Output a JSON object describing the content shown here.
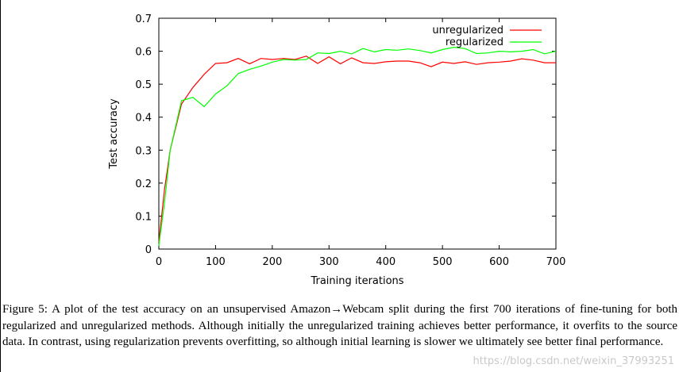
{
  "chart_data": {
    "type": "line",
    "title": "",
    "xlabel": "Training iterations",
    "ylabel": "Test accuracy",
    "xlim": [
      0,
      700
    ],
    "ylim": [
      0,
      0.7
    ],
    "xticks": [
      "0",
      "100",
      "200",
      "300",
      "400",
      "500",
      "600",
      "700"
    ],
    "yticks": [
      "0",
      "0.1",
      "0.2",
      "0.3",
      "0.4",
      "0.5",
      "0.6",
      "0.7"
    ],
    "grid": false,
    "legend_position": "top-right",
    "series": [
      {
        "name": "unregularized",
        "color": "#ff0000",
        "x": [
          0,
          10,
          20,
          40,
          60,
          80,
          100,
          120,
          140,
          160,
          180,
          200,
          220,
          240,
          260,
          280,
          300,
          320,
          340,
          360,
          380,
          400,
          420,
          440,
          460,
          480,
          500,
          520,
          540,
          560,
          580,
          600,
          620,
          640,
          660,
          680,
          700
        ],
        "y": [
          0.02,
          0.18,
          0.3,
          0.44,
          0.49,
          0.53,
          0.563,
          0.565,
          0.578,
          0.562,
          0.578,
          0.575,
          0.578,
          0.575,
          0.585,
          0.563,
          0.583,
          0.562,
          0.58,
          0.565,
          0.563,
          0.568,
          0.57,
          0.57,
          0.565,
          0.553,
          0.567,
          0.563,
          0.568,
          0.56,
          0.565,
          0.567,
          0.57,
          0.577,
          0.573,
          0.565,
          0.565
        ]
      },
      {
        "name": "regularized",
        "color": "#00ff00",
        "x": [
          0,
          10,
          20,
          40,
          60,
          80,
          100,
          120,
          140,
          160,
          180,
          200,
          220,
          240,
          260,
          280,
          300,
          320,
          340,
          360,
          380,
          400,
          420,
          440,
          460,
          480,
          500,
          520,
          540,
          560,
          580,
          600,
          620,
          640,
          660,
          680,
          700
        ],
        "y": [
          0.01,
          0.14,
          0.3,
          0.45,
          0.46,
          0.432,
          0.47,
          0.495,
          0.532,
          0.545,
          0.555,
          0.567,
          0.575,
          0.573,
          0.575,
          0.595,
          0.593,
          0.6,
          0.592,
          0.608,
          0.598,
          0.605,
          0.603,
          0.607,
          0.602,
          0.595,
          0.605,
          0.612,
          0.608,
          0.593,
          0.595,
          0.6,
          0.598,
          0.6,
          0.605,
          0.592,
          0.6
        ]
      }
    ]
  },
  "caption": {
    "text": "Figure 5: A plot of the test accuracy on an unsupervised Amazon→Webcam split during the first 700 iterations of fine-tuning for both regularized and unregularized methods. Although initially the unregularized training achieves better performance, it overfits to the source data. In contrast, using regularization prevents overfitting, so although initial learning is slower we ultimately see better final performance."
  },
  "watermark": "https://blog.csdn.net/weixin_37993251"
}
